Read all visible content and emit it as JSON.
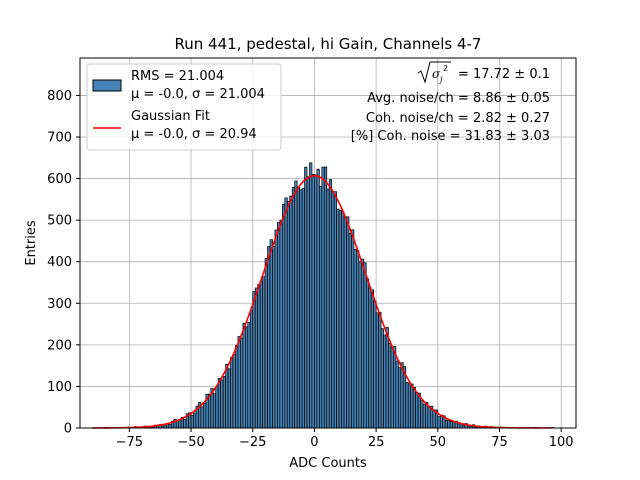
{
  "chart_data": {
    "type": "bar",
    "title": "Run 441, pedestal, hi Gain, Channels 4-7",
    "xlabel": "ADC Counts",
    "ylabel": "Entries",
    "xlim": [
      -95,
      106
    ],
    "ylim": [
      0,
      890
    ],
    "xticks": [
      -75,
      -50,
      -25,
      0,
      25,
      50,
      75,
      100
    ],
    "xtick_labels": [
      "−75",
      "−50",
      "−25",
      "0",
      "25",
      "50",
      "75",
      "100"
    ],
    "yticks": [
      0,
      100,
      200,
      300,
      400,
      500,
      600,
      700,
      800
    ],
    "ytick_labels": [
      "0",
      "100",
      "200",
      "300",
      "400",
      "500",
      "600",
      "700",
      "800"
    ],
    "grid": true,
    "bin_width": 1,
    "hist_color": "#4682b4",
    "fit_color": "#ff0000",
    "histogram": {
      "name": "RMS = 21.004",
      "mean": -0.0,
      "sigma": 21.004,
      "amplitude": 610,
      "x_range": [
        -88,
        96
      ]
    },
    "fit": {
      "name": "Gaussian Fit",
      "mean": -0.0,
      "sigma": 20.94,
      "amplitude": 607,
      "x_range": [
        -90,
        96
      ]
    },
    "legend": {
      "position": "upper-left",
      "entries": [
        {
          "label": "RMS = 21.004",
          "sublabel": "μ = -0.0, σ = 21.004"
        },
        {
          "label": "Gaussian Fit",
          "sublabel": "μ = -0.0, σ = 20.94"
        }
      ]
    },
    "annotations": [
      {
        "text": "= 17.72 ± 0.1",
        "prefix": "sqrt-sigma-j-squared"
      },
      {
        "text": "Avg. noise/ch = 8.86 ± 0.05"
      },
      {
        "text": "Coh. noise/ch = 2.82 ± 0.27"
      },
      {
        "text": "[%] Coh. noise = 31.83 ± 3.03"
      }
    ]
  }
}
